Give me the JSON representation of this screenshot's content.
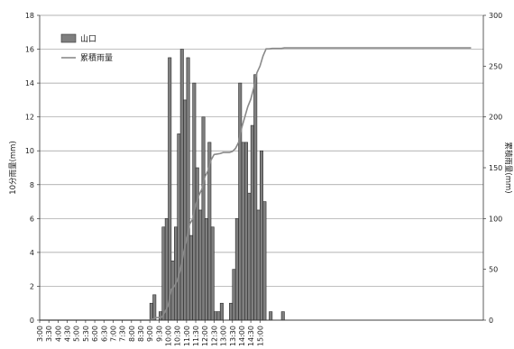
{
  "chart_data": {
    "type": "bar",
    "legend": [
      {
        "name": "山口",
        "kind": "bar",
        "color": "#7f7f7f"
      },
      {
        "name": "累積雨量",
        "kind": "line",
        "color": "#7f7f7f"
      }
    ],
    "y_left": {
      "label": "10分雨量(mm)",
      "range": [
        0,
        18
      ],
      "ticks": [
        "0",
        "2",
        "4",
        "6",
        "8",
        "10",
        "12",
        "14",
        "16",
        "18"
      ]
    },
    "y_right": {
      "label": "累積雨量(mm)",
      "range": [
        0,
        300
      ],
      "ticks": [
        "0",
        "50",
        "100",
        "150",
        "200",
        "250",
        "300"
      ]
    },
    "x": {
      "ticks": [
        "3:00",
        "3:30",
        "4:00",
        "4:30",
        "5:00",
        "5:30",
        "6:00",
        "6:30",
        "7:00",
        "7:30",
        "8:00",
        "8:30",
        "9:00",
        "9:30",
        "10:00",
        "10:30",
        "11:00",
        "11:30",
        "12:00",
        "12:30",
        "13:00",
        "13:30",
        "14:00",
        "14:30",
        "15:00"
      ]
    },
    "series": [
      {
        "name": "山口",
        "axis": "left",
        "values": [
          0,
          0,
          0,
          0,
          0,
          0,
          0,
          0,
          0,
          0,
          0,
          0,
          0,
          0,
          0,
          0,
          0,
          0,
          0,
          0,
          0,
          0,
          0,
          0,
          0,
          0,
          0,
          0,
          0,
          0,
          0,
          0,
          0,
          0,
          0,
          0,
          1,
          1.5,
          0,
          0.5,
          5.5,
          6,
          15.5,
          3.5,
          5.5,
          11,
          16,
          13,
          15.5,
          5,
          14,
          9,
          6.5,
          12,
          6,
          10.5,
          5.5,
          0.5,
          0.5,
          1,
          0,
          0,
          1,
          3,
          6,
          14,
          10.5,
          10.5,
          7.5,
          11.5,
          14.5,
          6.5,
          10,
          7,
          0,
          0.5,
          0,
          0,
          0,
          0.5,
          0,
          0,
          0,
          0,
          0,
          0,
          0,
          0,
          0,
          0,
          0,
          0,
          0,
          0,
          0,
          0,
          0,
          0,
          0,
          0,
          0,
          0,
          0,
          0,
          0,
          0,
          0,
          0,
          0,
          0,
          0,
          0,
          0,
          0,
          0,
          0,
          0,
          0,
          0,
          0,
          0,
          0,
          0,
          0,
          0,
          0,
          0,
          0,
          0,
          0,
          0,
          0,
          0,
          0,
          0,
          0,
          0,
          0,
          0,
          0,
          0,
          0,
          0,
          0,
          0
        ]
      },
      {
        "name": "累積雨量",
        "axis": "right",
        "values": [
          0,
          0,
          0,
          0,
          0,
          0,
          0,
          0,
          0,
          0,
          0,
          0,
          0,
          0,
          0,
          0,
          0,
          0,
          0,
          0,
          0,
          0,
          0,
          0,
          0,
          0,
          0,
          0,
          0,
          0,
          0,
          0,
          0,
          0,
          0,
          0,
          1,
          2.5,
          2.5,
          3,
          8.5,
          14.5,
          30,
          33.5,
          39,
          50,
          66,
          79,
          94.5,
          99.5,
          113.5,
          122.5,
          129,
          141,
          147,
          157.5,
          163,
          163.5,
          164,
          165,
          165,
          165,
          166,
          169,
          175,
          189,
          199.5,
          210,
          217.5,
          229,
          243.5,
          250,
          260,
          267,
          267,
          267.5,
          267.5,
          267.5,
          267.5,
          268,
          268,
          268,
          268,
          268,
          268,
          268,
          268,
          268,
          268,
          268,
          268,
          268,
          268,
          268,
          268,
          268,
          268,
          268,
          268,
          268,
          268,
          268,
          268,
          268,
          268,
          268,
          268,
          268,
          268,
          268,
          268,
          268,
          268,
          268,
          268,
          268,
          268,
          268,
          268,
          268,
          268,
          268,
          268,
          268,
          268,
          268,
          268,
          268,
          268,
          268,
          268,
          268,
          268,
          268,
          268,
          268,
          268,
          268,
          268,
          268,
          268
        ]
      }
    ]
  }
}
